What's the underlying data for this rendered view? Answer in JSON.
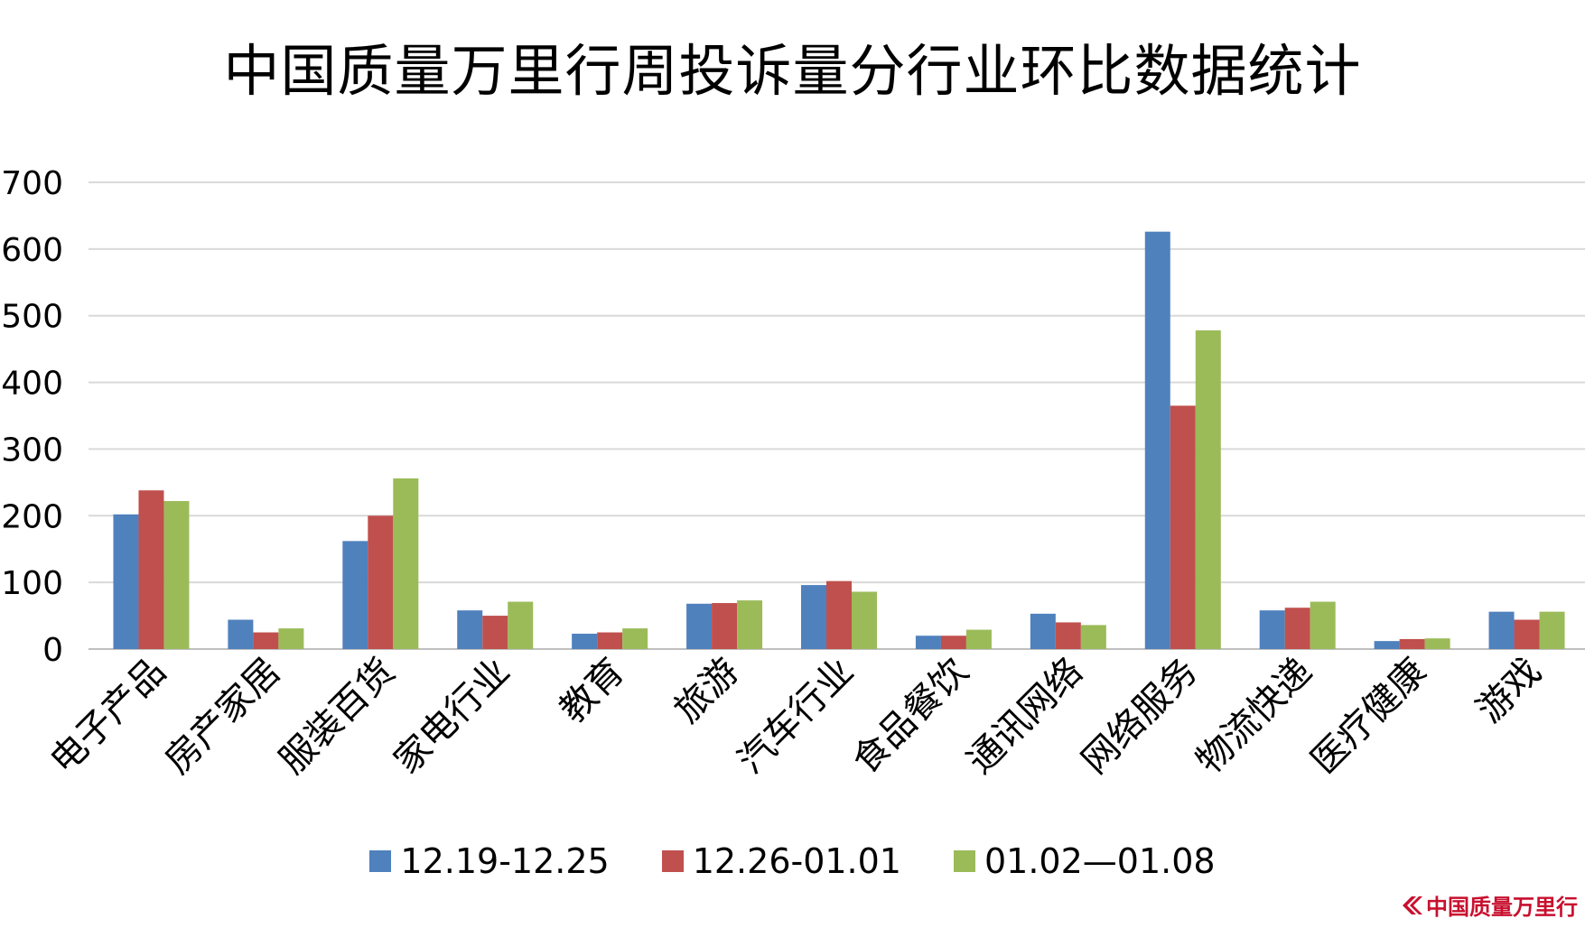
{
  "chart_data": {
    "type": "bar",
    "title": "中国质量万里行周投诉量分行业环比数据统计",
    "categories": [
      "电子产品",
      "房产家居",
      "服装百货",
      "家电行业",
      "教育",
      "旅游",
      "汽车行业",
      "食品餐饮",
      "通讯网络",
      "网络服务",
      "物流快递",
      "医疗健康",
      "游戏"
    ],
    "series": [
      {
        "name": "12.19-12.25",
        "color": "#4F81BD",
        "values": [
          202,
          44,
          162,
          58,
          23,
          68,
          96,
          20,
          53,
          626,
          58,
          12,
          56
        ]
      },
      {
        "name": "12.26-01.01",
        "color": "#C0504D",
        "values": [
          238,
          25,
          200,
          50,
          25,
          69,
          102,
          20,
          40,
          365,
          62,
          15,
          44
        ]
      },
      {
        "name": "01.02—01.08",
        "color": "#9BBB59",
        "values": [
          222,
          31,
          256,
          71,
          31,
          73,
          86,
          29,
          36,
          478,
          71,
          16,
          56
        ]
      }
    ],
    "yticks": [
      "0",
      "100",
      "200",
      "300",
      "400",
      "500",
      "600",
      "700"
    ],
    "ylim": [
      0,
      700
    ],
    "grid": true,
    "legend_position": "bottom"
  },
  "watermark": {
    "text": "中国质量万里行"
  },
  "colors": {
    "gridline": "#D9D9D9",
    "axis": "#BFBFBF"
  }
}
